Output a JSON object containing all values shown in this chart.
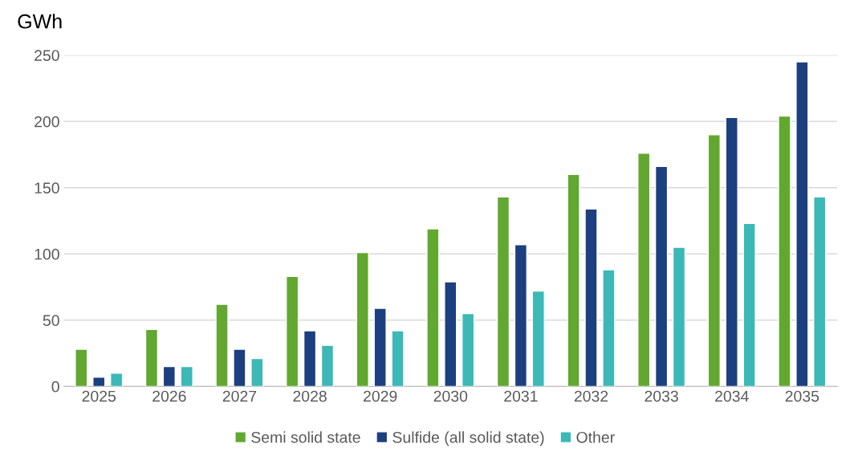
{
  "chart_data": {
    "type": "bar",
    "ylabel": "GWh",
    "categories": [
      "2025",
      "2026",
      "2027",
      "2028",
      "2029",
      "2030",
      "2031",
      "2032",
      "2033",
      "2034",
      "2035"
    ],
    "series": [
      {
        "name": "Semi solid state",
        "color": "#62a830",
        "values": [
          28,
          43,
          62,
          83,
          101,
          119,
          143,
          160,
          176,
          190,
          204
        ]
      },
      {
        "name": "Sulfide (all solid state)",
        "color": "#1c3f7f",
        "values": [
          7,
          15,
          28,
          42,
          59,
          79,
          107,
          134,
          166,
          203,
          245
        ]
      },
      {
        "name": "Other",
        "color": "#3cb8b6",
        "values": [
          10,
          15,
          21,
          31,
          42,
          55,
          72,
          88,
          105,
          123,
          143
        ]
      }
    ],
    "ylim": [
      0,
      250
    ],
    "yticks": [
      0,
      50,
      100,
      150,
      200,
      250
    ],
    "grid": "y",
    "legend": "bottom"
  }
}
